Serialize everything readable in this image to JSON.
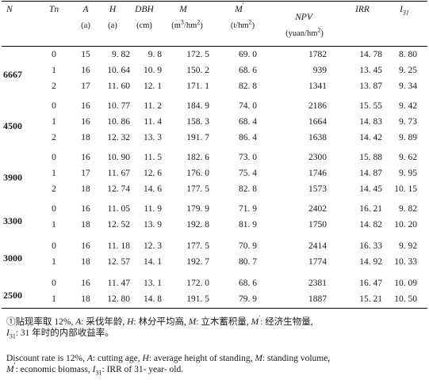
{
  "header": {
    "cols": [
      {
        "sym": "N"
      },
      {
        "sym": "Tn"
      },
      {
        "sym": "A",
        "unit": "(a)"
      },
      {
        "sym": "H",
        "unit": "(a)"
      },
      {
        "sym": "DBH",
        "unit": "(cm)"
      },
      {
        "sym": "M",
        "unit_base": "(m",
        "unit_sup": "3",
        "unit_tail": "/hm",
        "unit_sup2": "2",
        "unit_end": ")"
      },
      {
        "sym": "M",
        "sym_prime": "′",
        "unit_base": "(t/hm",
        "unit_sup": "2",
        "unit_end": ")"
      },
      {
        "sym": "NPV",
        "unit_base": "(yuan/hm",
        "unit_sup": "2",
        "unit_end": ")"
      },
      {
        "sym": "IRR"
      },
      {
        "sym": "I",
        "sym_sub": "31"
      }
    ]
  },
  "groups": [
    {
      "n": "6667",
      "rows": [
        [
          "0",
          "15",
          "9. 82",
          "9. 8",
          "172. 5",
          "69. 0",
          "1782",
          "14. 78",
          "8. 80"
        ],
        [
          "1",
          "16",
          "10. 64",
          "10. 9",
          "150. 2",
          "68. 6",
          "939",
          "13. 45",
          "9. 25"
        ],
        [
          "2",
          "17",
          "11. 60",
          "12. 1",
          "171. 1",
          "82. 8",
          "1341",
          "13. 87",
          "9. 34"
        ]
      ]
    },
    {
      "n": "4500",
      "rows": [
        [
          "0",
          "16",
          "10. 77",
          "11. 2",
          "184. 9",
          "74. 0",
          "2186",
          "15. 55",
          "9. 42"
        ],
        [
          "1",
          "16",
          "10. 86",
          "11. 4",
          "158. 3",
          "68. 4",
          "1664",
          "14. 83",
          "9. 73"
        ],
        [
          "2",
          "18",
          "12. 32",
          "13. 3",
          "191. 7",
          "86. 4",
          "1638",
          "14. 42",
          "9. 89"
        ]
      ]
    },
    {
      "n": "3900",
      "rows": [
        [
          "0",
          "16",
          "10. 90",
          "11. 5",
          "182. 6",
          "73. 0",
          "2300",
          "15. 88",
          "9. 62"
        ],
        [
          "1",
          "17",
          "11. 67",
          "12. 6",
          "176. 0",
          "75. 4",
          "1746",
          "14. 87",
          "9. 95"
        ],
        [
          "2",
          "18",
          "12. 74",
          "14. 6",
          "177. 5",
          "82. 8",
          "1573",
          "14. 45",
          "10. 15"
        ]
      ]
    },
    {
      "n": "3300",
      "rows": [
        [
          "0",
          "16",
          "11. 05",
          "11. 9",
          "179. 9",
          "71. 9",
          "2402",
          "16. 21",
          "9. 82"
        ],
        [
          "1",
          "18",
          "12. 52",
          "13. 9",
          "192. 8",
          "81. 9",
          "1750",
          "14. 82",
          "10. 20"
        ]
      ]
    },
    {
      "n": "3000",
      "rows": [
        [
          "0",
          "16",
          "11. 18",
          "12. 3",
          "177. 5",
          "70. 9",
          "2414",
          "16. 33",
          "9. 92"
        ],
        [
          "1",
          "18",
          "12. 57",
          "14. 1",
          "192. 7",
          "80. 7",
          "1774",
          "14. 92",
          "10. 33"
        ]
      ]
    },
    {
      "n": "2500",
      "rows": [
        [
          "0",
          "16",
          "11. 47",
          "13. 1",
          "172. 0",
          "68. 6",
          "2381",
          "16. 47",
          "10. 09"
        ],
        [
          "1",
          "18",
          "12. 80",
          "14. 8",
          "191. 5",
          "79. 9",
          "1887",
          "15. 21",
          "10. 50"
        ]
      ]
    }
  ],
  "notes": {
    "zh": {
      "marker": "①",
      "lead": "贴现率取 12%,",
      "a_sym": "A",
      "a_def": ": 采伐年龄,",
      "h_sym": "H",
      "h_def": ": 林分平均高,",
      "m_sym": "M",
      "m_def": ": 立木蓄积量,",
      "mp_sym": "M",
      "mp_prime": "′",
      "mp_def": ": 经济生物量,",
      "i_sym": "I",
      "i_sub": "31",
      "i_def": ": 31 年时的内部收益率。"
    },
    "en": {
      "lead": "Discount rate is 12%,",
      "a_sym": "A",
      "a_def": ": cutting age,",
      "h_sym": "H",
      "h_def": ": average height of standing,",
      "m_sym": "M",
      "m_def": ": standing volume,",
      "mp_sym": "M",
      "mp_prime": "′",
      "mp_def": ": economic biomass,",
      "i_sym": "I",
      "i_sub": "31",
      "i_def": ": IRR of 31- year- old."
    }
  }
}
